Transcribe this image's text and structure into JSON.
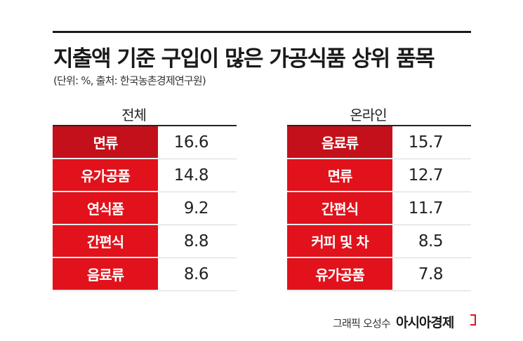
{
  "title": "지출액 기준 구입이 많은 가공식품 상위 품목",
  "subtitle": "(단위: %, 출처: 한국농촌경제연구원)",
  "credit": "그래픽 오성수",
  "brand": "아시아경제",
  "chart_data": [
    {
      "type": "table",
      "title": "전체",
      "categories": [
        "면류",
        "유가공품",
        "연식품",
        "간편식",
        "음료류"
      ],
      "values": [
        "16.6",
        "14.8",
        "9.2",
        "8.8",
        "8.6"
      ]
    },
    {
      "type": "table",
      "title": "온라인",
      "categories": [
        "음료류",
        "면류",
        "간편식",
        "커피 및 차",
        "유가공품"
      ],
      "values": [
        "15.7",
        "12.7",
        "11.7",
        "8.5",
        "7.8"
      ]
    }
  ],
  "colors": {
    "accent": "#e1121b",
    "accent_dark": "#c4101a"
  }
}
